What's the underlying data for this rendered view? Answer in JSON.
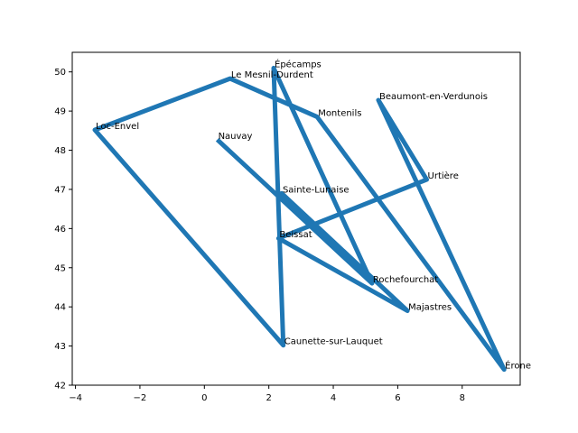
{
  "chart_data": {
    "type": "line",
    "title": "",
    "xlabel": "",
    "ylabel": "",
    "xlim": [
      -4.1,
      9.8
    ],
    "ylim": [
      42.0,
      50.5
    ],
    "grid": false,
    "legend": "none",
    "x_ticks": [
      -4,
      -2,
      0,
      2,
      4,
      6,
      8
    ],
    "y_ticks": [
      42,
      43,
      44,
      45,
      46,
      47,
      48,
      49,
      50
    ],
    "x_tick_labels": [
      "−4",
      "−2",
      "0",
      "2",
      "4",
      "6",
      "8"
    ],
    "y_tick_labels": [
      "42",
      "43",
      "44",
      "45",
      "46",
      "47",
      "48",
      "49",
      "50"
    ],
    "series": [
      {
        "color": "#1f77b4",
        "points": [
          {
            "label": "Nauvay",
            "x": 0.4,
            "y": 48.27
          },
          {
            "label": "Rochefourchat",
            "x": 5.2,
            "y": 44.6
          },
          {
            "label": "Sainte-Lunaise",
            "x": 2.4,
            "y": 46.9
          },
          {
            "label": "Majastres",
            "x": 6.3,
            "y": 43.9
          },
          {
            "label": "Beissat",
            "x": 2.3,
            "y": 45.75
          },
          {
            "label": "Urtière",
            "x": 6.9,
            "y": 47.25
          },
          {
            "label": "Beaumont-en-Verdunois",
            "x": 5.4,
            "y": 49.28
          },
          {
            "label": "Érone",
            "x": 9.3,
            "y": 42.4
          },
          {
            "label": "Montenils",
            "x": 3.5,
            "y": 48.85
          },
          {
            "label": "Le Mesnil-Durdent",
            "x": 0.8,
            "y": 49.83
          },
          {
            "label": "Loc-Envel",
            "x": -3.4,
            "y": 48.52
          },
          {
            "label": "Caunette-sur-Lauquet",
            "x": 2.45,
            "y": 43.02
          },
          {
            "label": "Épécamps",
            "x": 2.15,
            "y": 50.1
          },
          {
            "label": "Rochefourchat",
            "x": 5.2,
            "y": 44.6
          }
        ]
      }
    ]
  },
  "colors": {
    "line": "#1f77b4",
    "axes": "#000000",
    "background": "#ffffff"
  }
}
